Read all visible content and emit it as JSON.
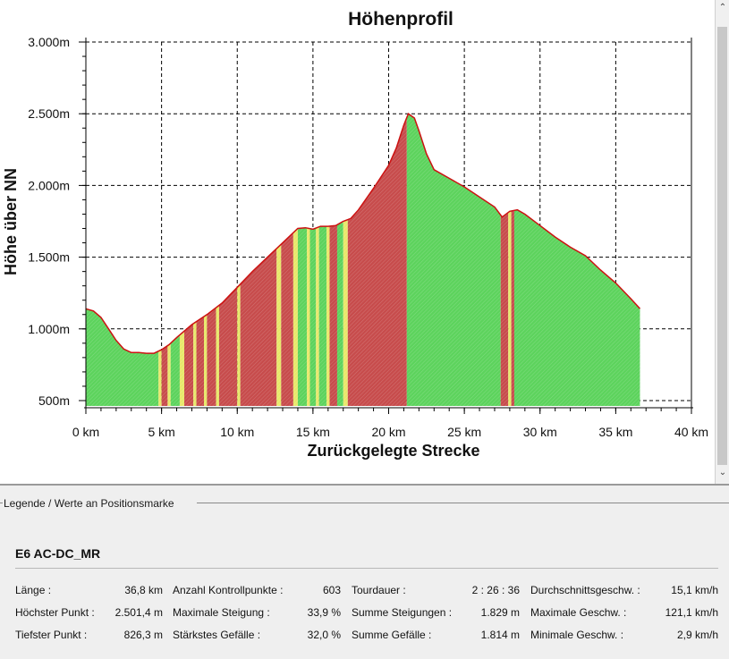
{
  "chart_data": {
    "type": "area",
    "title": "Höhenprofil",
    "xlabel": "Zurückgelegte Strecke",
    "ylabel": "Höhe über NN",
    "xlim": [
      0,
      40
    ],
    "ylim": [
      500,
      3000
    ],
    "grid": true,
    "x_ticks": [
      0,
      5,
      10,
      15,
      20,
      25,
      30,
      35,
      40
    ],
    "x_tick_labels": [
      "0 km",
      "5 km",
      "10 km",
      "15 km",
      "20 km",
      "25 km",
      "30 km",
      "35 km",
      "40 km"
    ],
    "y_ticks": [
      500,
      1000,
      1500,
      2000,
      2500,
      3000
    ],
    "y_tick_labels": [
      "500m",
      "1.000m",
      "1.500m",
      "2.000m",
      "2.500m",
      "3.000m"
    ],
    "x": [
      0,
      0.5,
      1,
      1.5,
      2,
      2.5,
      3,
      3.5,
      4,
      4.5,
      5,
      5.5,
      6,
      7,
      8,
      9,
      10,
      11,
      12,
      13,
      14,
      14.5,
      15,
      15.5,
      16,
      16.5,
      17,
      17.5,
      18,
      19,
      20,
      20.5,
      21,
      21.3,
      21.7,
      22,
      22.5,
      23,
      24,
      25,
      26,
      27,
      27.5,
      28,
      28.5,
      29,
      30,
      31,
      32,
      33,
      34,
      35,
      36,
      36.6
    ],
    "y": [
      1140,
      1125,
      1080,
      1000,
      920,
      860,
      835,
      835,
      830,
      830,
      855,
      890,
      940,
      1030,
      1100,
      1180,
      1290,
      1400,
      1500,
      1600,
      1700,
      1705,
      1695,
      1715,
      1715,
      1720,
      1750,
      1770,
      1830,
      1980,
      2140,
      2260,
      2420,
      2500,
      2470,
      2380,
      2220,
      2110,
      2050,
      1990,
      1920,
      1850,
      1780,
      1820,
      1830,
      1800,
      1720,
      1640,
      1570,
      1510,
      1410,
      1320,
      1210,
      1140
    ],
    "segments": [
      {
        "from": 0,
        "to": 4.8,
        "color": "#5dd35d"
      },
      {
        "from": 4.8,
        "to": 5.0,
        "color": "#e8e86a"
      },
      {
        "from": 5.0,
        "to": 5.4,
        "color": "#c74c4c"
      },
      {
        "from": 5.4,
        "to": 5.6,
        "color": "#e8e86a"
      },
      {
        "from": 5.6,
        "to": 6.2,
        "color": "#5dd35d"
      },
      {
        "from": 6.2,
        "to": 6.5,
        "color": "#e8e86a"
      },
      {
        "from": 6.5,
        "to": 7.1,
        "color": "#c74c4c"
      },
      {
        "from": 7.1,
        "to": 7.3,
        "color": "#e8e86a"
      },
      {
        "from": 7.3,
        "to": 7.8,
        "color": "#c74c4c"
      },
      {
        "from": 7.8,
        "to": 8.0,
        "color": "#e8e86a"
      },
      {
        "from": 8.0,
        "to": 8.6,
        "color": "#c74c4c"
      },
      {
        "from": 8.6,
        "to": 8.8,
        "color": "#e8e86a"
      },
      {
        "from": 8.8,
        "to": 10.0,
        "color": "#c74c4c"
      },
      {
        "from": 10.0,
        "to": 10.2,
        "color": "#e8e86a"
      },
      {
        "from": 10.2,
        "to": 12.6,
        "color": "#c74c4c"
      },
      {
        "from": 12.6,
        "to": 12.9,
        "color": "#e8e86a"
      },
      {
        "from": 12.9,
        "to": 13.7,
        "color": "#c74c4c"
      },
      {
        "from": 13.7,
        "to": 14.0,
        "color": "#e8e86a"
      },
      {
        "from": 14.0,
        "to": 14.6,
        "color": "#5dd35d"
      },
      {
        "from": 14.6,
        "to": 14.8,
        "color": "#e8e86a"
      },
      {
        "from": 14.8,
        "to": 15.2,
        "color": "#5dd35d"
      },
      {
        "from": 15.2,
        "to": 15.4,
        "color": "#e8e86a"
      },
      {
        "from": 15.4,
        "to": 15.9,
        "color": "#5dd35d"
      },
      {
        "from": 15.9,
        "to": 16.1,
        "color": "#e8e86a"
      },
      {
        "from": 16.1,
        "to": 16.6,
        "color": "#c74c4c"
      },
      {
        "from": 16.6,
        "to": 17.0,
        "color": "#5dd35d"
      },
      {
        "from": 17.0,
        "to": 17.3,
        "color": "#e8e86a"
      },
      {
        "from": 17.3,
        "to": 21.2,
        "color": "#c74c4c"
      },
      {
        "from": 21.2,
        "to": 27.4,
        "color": "#5dd35d"
      },
      {
        "from": 27.4,
        "to": 27.9,
        "color": "#c74c4c"
      },
      {
        "from": 27.9,
        "to": 28.1,
        "color": "#e8e86a"
      },
      {
        "from": 28.1,
        "to": 28.3,
        "color": "#c74c4c"
      },
      {
        "from": 28.3,
        "to": 36.6,
        "color": "#5dd35d"
      }
    ],
    "outline_color": "#cc1111"
  },
  "legend": {
    "title": "Legende / Werte an Positionsmarke",
    "route_name": "E6 AC-DC_MR",
    "stats": [
      {
        "label": "Länge :",
        "value": "36,8 km"
      },
      {
        "label": "Anzahl Kontrollpunkte :",
        "value": "603"
      },
      {
        "label": "Tourdauer :",
        "value": "2 : 26 : 36"
      },
      {
        "label": "Durchschnittsgeschw. :",
        "value": "15,1 km/h"
      },
      {
        "label": "Höchster Punkt :",
        "value": "2.501,4 m"
      },
      {
        "label": "Maximale Steigung :",
        "value": "33,9 %"
      },
      {
        "label": "Summe Steigungen :",
        "value": "1.829 m"
      },
      {
        "label": "Maximale Geschw. :",
        "value": "121,1 km/h"
      },
      {
        "label": "Tiefster Punkt :",
        "value": "826,3 m"
      },
      {
        "label": "Stärkstes Gefälle :",
        "value": "32,0 %"
      },
      {
        "label": "Summe Gefälle :",
        "value": "1.814 m"
      },
      {
        "label": "Minimale Geschw. :",
        "value": "2,9 km/h"
      }
    ]
  }
}
